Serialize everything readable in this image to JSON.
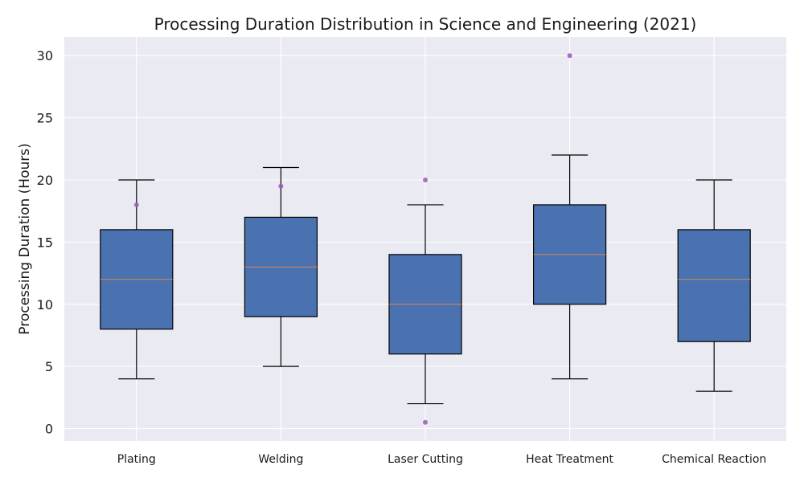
{
  "chart_data": {
    "type": "box",
    "title": "Processing Duration Distribution in Science and Engineering (2021)",
    "xlabel": "",
    "ylabel": "Processing Duration (Hours)",
    "ylim": [
      -1,
      31.5
    ],
    "yticks": [
      0,
      5,
      10,
      15,
      20,
      25,
      30
    ],
    "grid": true,
    "colors": {
      "background": "#eaeaf2",
      "box_fill": "#4a72b0",
      "box_edge": "#000000",
      "median": "#dd8452",
      "outlier": "#9b59b6",
      "grid": "#ffffff"
    },
    "categories": [
      "Plating",
      "Welding",
      "Laser Cutting",
      "Heat Treatment",
      "Chemical Reaction"
    ],
    "boxes": [
      {
        "min": 4,
        "q1": 8,
        "median": 12,
        "q3": 16,
        "max": 20,
        "outliers": [
          18
        ]
      },
      {
        "min": 5,
        "q1": 9,
        "median": 13,
        "q3": 17,
        "max": 21,
        "outliers": [
          19.5
        ]
      },
      {
        "min": 2,
        "q1": 6,
        "median": 10,
        "q3": 14,
        "max": 18,
        "outliers": [
          20,
          0.5
        ]
      },
      {
        "min": 4,
        "q1": 10,
        "median": 14,
        "q3": 18,
        "max": 22,
        "outliers": [
          30
        ]
      },
      {
        "min": 3,
        "q1": 7,
        "median": 12,
        "q3": 16,
        "max": 20,
        "outliers": []
      }
    ]
  }
}
